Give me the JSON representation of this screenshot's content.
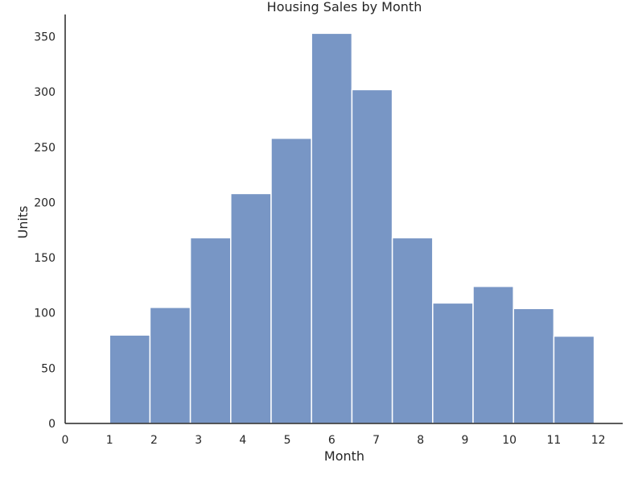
{
  "chart_data": {
    "type": "bar",
    "title": "Housing Sales by Month",
    "xlabel": "Month",
    "ylabel": "Units",
    "bar_color": "#7896c5",
    "bar_edge_color": "#ffffff",
    "axis_color": "#262626",
    "xlim": [
      0,
      12.55
    ],
    "ylim": [
      0,
      370
    ],
    "grid": false,
    "x_ticks": [
      0,
      1,
      2,
      3,
      4,
      5,
      6,
      7,
      8,
      9,
      10,
      11,
      12
    ],
    "y_ticks": [
      0,
      50,
      100,
      150,
      200,
      250,
      300,
      350
    ],
    "bars": [
      {
        "x_start": 1.0,
        "x_end": 1.909,
        "value": 80
      },
      {
        "x_start": 1.909,
        "x_end": 2.818,
        "value": 105
      },
      {
        "x_start": 2.818,
        "x_end": 3.727,
        "value": 168
      },
      {
        "x_start": 3.727,
        "x_end": 4.636,
        "value": 208
      },
      {
        "x_start": 4.636,
        "x_end": 5.545,
        "value": 258
      },
      {
        "x_start": 5.545,
        "x_end": 6.455,
        "value": 353
      },
      {
        "x_start": 6.455,
        "x_end": 7.364,
        "value": 302
      },
      {
        "x_start": 7.364,
        "x_end": 8.273,
        "value": 168
      },
      {
        "x_start": 8.273,
        "x_end": 9.182,
        "value": 109
      },
      {
        "x_start": 9.182,
        "x_end": 10.091,
        "value": 124
      },
      {
        "x_start": 10.091,
        "x_end": 11.0,
        "value": 104
      },
      {
        "x_start": 11.0,
        "x_end": 11.909,
        "value": 79
      }
    ]
  }
}
